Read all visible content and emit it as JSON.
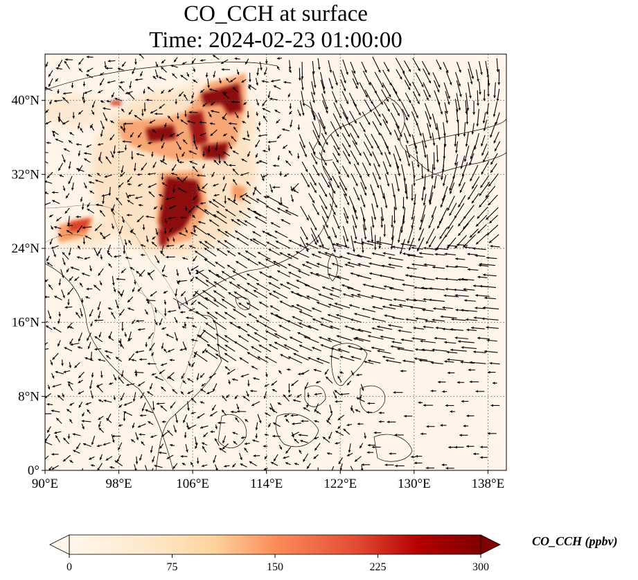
{
  "title": {
    "line1": "CO_CCH at surface",
    "line2": "Time: 2024-02-23 01:00:00"
  },
  "map": {
    "lon_range": [
      90,
      140
    ],
    "lat_range": [
      0,
      45
    ],
    "lon_ticks": [
      90,
      98,
      106,
      114,
      122,
      130,
      138
    ],
    "lon_tick_labels": [
      "90°E",
      "98°E",
      "106°E",
      "114°E",
      "122°E",
      "130°E",
      "138°E"
    ],
    "lat_ticks": [
      0,
      8,
      16,
      24,
      32,
      40
    ],
    "lat_tick_labels": [
      "0°",
      "8°N",
      "16°N",
      "24°N",
      "32°N",
      "40°N"
    ],
    "gridlines": "dotted",
    "background_color": "#fff5ea",
    "plume_colors": [
      "#fdd9b5",
      "#f79c66",
      "#d8422a",
      "#8c0a0a"
    ],
    "wind_vectors": "black arrows"
  },
  "colorbar": {
    "label": "CO_CCH (ppbv)",
    "min": 0,
    "max": 300,
    "ticks": [
      0,
      75,
      150,
      225,
      300
    ],
    "tick_labels": [
      "0",
      "75",
      "150",
      "225",
      "300"
    ],
    "colormap": "OrRd",
    "extend": "both"
  }
}
